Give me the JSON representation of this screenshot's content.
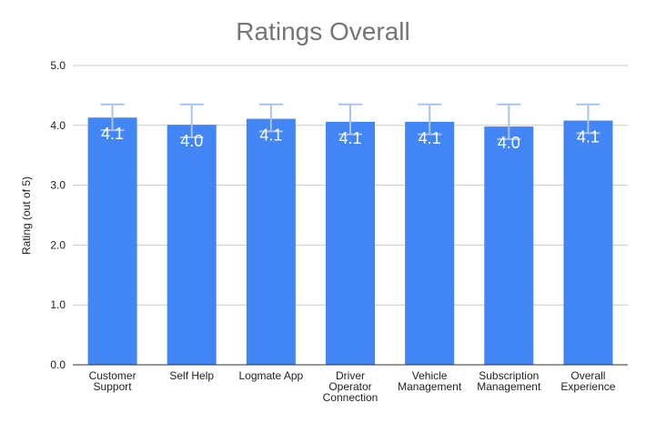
{
  "chart_data": {
    "type": "bar",
    "title": "Ratings Overall",
    "xlabel": "",
    "ylabel": "Rating (out of 5)",
    "ylim": [
      0,
      5
    ],
    "yticks": [
      "0.0",
      "1.0",
      "2.0",
      "3.0",
      "4.0",
      "5.0"
    ],
    "grid": true,
    "legend": "none",
    "categories": [
      [
        "Customer",
        "Support"
      ],
      [
        "Self Help"
      ],
      [
        "Logmate App"
      ],
      [
        "Driver",
        "Operator",
        "Connection"
      ],
      [
        "Vehicle",
        "Management"
      ],
      [
        "Subscription",
        "Management"
      ],
      [
        "Overall",
        "Experience"
      ]
    ],
    "values": [
      4.13,
      4.01,
      4.11,
      4.06,
      4.06,
      3.98,
      4.08
    ],
    "data_labels": [
      "4.1",
      "4.0",
      "4.1",
      "4.1",
      "4.1",
      "4.0",
      "4.1"
    ],
    "error_upper": [
      4.35,
      4.35,
      4.35,
      4.35,
      4.35,
      4.35,
      4.35
    ],
    "error_lower": [
      3.92,
      3.8,
      3.9,
      3.85,
      3.85,
      3.77,
      3.87
    ],
    "colors": {
      "bar": "#4285f4",
      "error": "#a8c4ee",
      "grid": "#cccccc",
      "title": "#757575"
    }
  }
}
